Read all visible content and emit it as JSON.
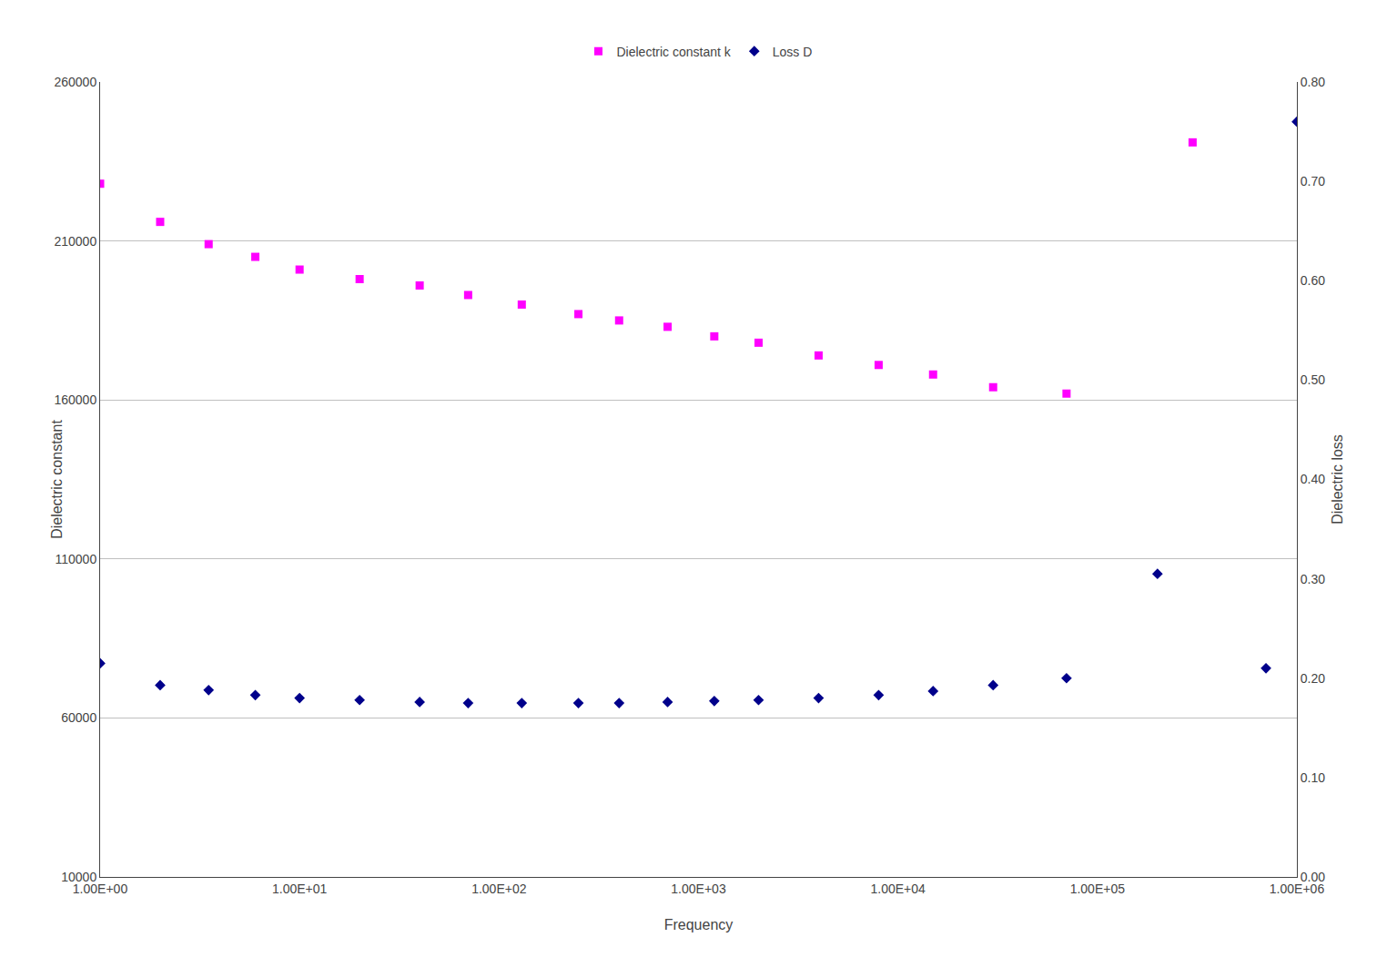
{
  "chart_data": {
    "type": "scatter",
    "xlabel": "Frequency",
    "ylabel": "Dielectric constant",
    "y2label": "Dielectric loss",
    "log": "x",
    "grid": "y",
    "legend": "top",
    "background_color": "#FFFFFF",
    "grid_color": "#C0C0C0",
    "xlim": [
      1.0,
      1000000.0
    ],
    "xticks": [
      {
        "value": 1.0,
        "label": "1.00E+00"
      },
      {
        "value": 10.0,
        "label": "1.00E+01"
      },
      {
        "value": 100.0,
        "label": "1.00E+02"
      },
      {
        "value": 1000.0,
        "label": "1.00E+03"
      },
      {
        "value": 10000.0,
        "label": "1.00E+04"
      },
      {
        "value": 100000.0,
        "label": "1.00E+05"
      },
      {
        "value": 1000000.0,
        "label": "1.00E+06"
      }
    ],
    "ylim": [
      10000,
      260000
    ],
    "yticks": [
      10000,
      60000,
      110000,
      160000,
      210000,
      260000
    ],
    "y2lim": [
      0.0,
      0.8
    ],
    "y2ticks": [
      {
        "value": 0.0,
        "label": "0.00"
      },
      {
        "value": 0.1,
        "label": "0.10"
      },
      {
        "value": 0.2,
        "label": "0.20"
      },
      {
        "value": 0.3,
        "label": "0.30"
      },
      {
        "value": 0.4,
        "label": "0.40"
      },
      {
        "value": 0.5,
        "label": "0.50"
      },
      {
        "value": 0.6,
        "label": "0.60"
      },
      {
        "value": 0.7,
        "label": "0.70"
      },
      {
        "value": 0.8,
        "label": "0.80"
      }
    ],
    "series": [
      {
        "name": "Dielectric constant k",
        "color": "#FF00FF",
        "marker": "square",
        "axis": "y",
        "x": [
          1.0,
          2.0,
          3.5,
          6.0,
          10.0,
          20.0,
          40.0,
          70.0,
          130.0,
          250.0,
          400.0,
          700.0,
          1200.0,
          2000.0,
          4000.0,
          8000.0,
          15000.0,
          30000.0,
          70000.0,
          300000.0
        ],
        "values": [
          228000,
          216000,
          209000,
          205000,
          201000,
          198000,
          196000,
          193000,
          190000,
          187000,
          185000,
          183000,
          180000,
          178000,
          174000,
          171000,
          168000,
          164000,
          162000,
          241000
        ]
      },
      {
        "name": "Loss D",
        "color": "#00008B",
        "marker": "diamond",
        "axis": "y2",
        "x": [
          1.0,
          2.0,
          3.5,
          6.0,
          10.0,
          20.0,
          40.0,
          70.0,
          130.0,
          250.0,
          400.0,
          700.0,
          1200.0,
          2000.0,
          4000.0,
          8000.0,
          15000.0,
          30000.0,
          70000.0,
          200000.0,
          700000.0,
          1000000.0
        ],
        "values": [
          0.215,
          0.193,
          0.188,
          0.183,
          0.18,
          0.178,
          0.176,
          0.175,
          0.175,
          0.175,
          0.175,
          0.176,
          0.177,
          0.178,
          0.18,
          0.183,
          0.187,
          0.193,
          0.2,
          0.305,
          0.21,
          0.76
        ]
      }
    ]
  }
}
